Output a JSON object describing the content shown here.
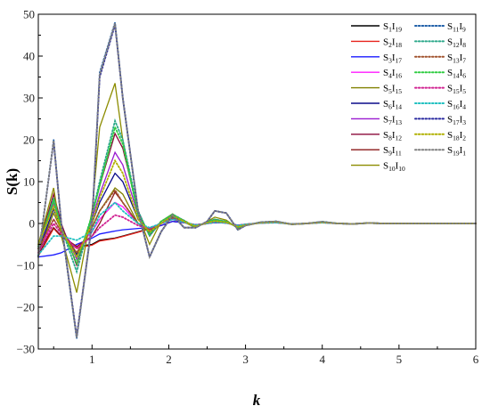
{
  "chart_data": {
    "type": "line",
    "ylabel": "S(k)",
    "xlabel": "k",
    "xlim": [
      0.3,
      6
    ],
    "ylim": [
      -30,
      50
    ],
    "x_ticks": [
      1,
      2,
      3,
      4,
      5,
      6
    ],
    "y_ticks": [
      -30,
      -20,
      -10,
      0,
      10,
      20,
      30,
      40,
      50
    ],
    "grid": false,
    "legend_placement": "top-right",
    "x": [
      0.3,
      0.5,
      0.6,
      0.8,
      1.0,
      1.1,
      1.3,
      1.4,
      1.6,
      1.75,
      1.9,
      2.05,
      2.2,
      2.35,
      2.5,
      2.6,
      2.75,
      2.9,
      3.0,
      3.2,
      3.4,
      3.6,
      3.8,
      4.0,
      4.2,
      4.4,
      4.6,
      4.8,
      5.0,
      5.5,
      6.0
    ],
    "series": [
      {
        "name": "S1I19",
        "label": "S",
        "label_sub1": "1",
        "label_i": "I",
        "label_sub2": "19",
        "color": "#000000",
        "dash": "solid",
        "values": [
          -7.5,
          -1,
          -3,
          -5.5,
          -5,
          -4,
          -3.5,
          -3,
          -2,
          -1.2,
          -0.5,
          0.5,
          0.2,
          -0.3,
          0,
          0.2,
          0.1,
          -0.4,
          -0.2,
          0.1,
          0.2,
          -0.1,
          0,
          0.2,
          0,
          -0.1,
          0.1,
          0,
          0,
          0,
          0
        ]
      },
      {
        "name": "S2I18",
        "label": "S",
        "label_sub1": "2",
        "label_i": "I",
        "label_sub2": "18",
        "color": "#e8221c",
        "dash": "solid",
        "values": [
          -7.8,
          -1.2,
          -3.2,
          -5.8,
          -5.2,
          -4.2,
          -3.6,
          -3.1,
          -2.1,
          -1.3,
          -0.5,
          0.5,
          0.2,
          -0.3,
          0,
          0.2,
          0.1,
          -0.4,
          -0.2,
          0.1,
          0.2,
          -0.1,
          0,
          0.2,
          0,
          -0.1,
          0.1,
          0,
          0,
          0,
          0
        ]
      },
      {
        "name": "S3I17",
        "label": "S",
        "label_sub1": "3",
        "label_i": "I",
        "label_sub2": "17",
        "color": "#1a1aff",
        "dash": "solid",
        "values": [
          -8,
          -7.5,
          -7,
          -5,
          -3.5,
          -2.5,
          -1.8,
          -1.5,
          -1.2,
          -1,
          -0.5,
          0.5,
          0.2,
          -0.3,
          0,
          0.2,
          0.1,
          -0.4,
          -0.2,
          0.1,
          0.2,
          -0.1,
          0,
          0.2,
          0,
          -0.1,
          0.1,
          0,
          0,
          0,
          0
        ]
      },
      {
        "name": "S4I16",
        "label": "S",
        "label_sub1": "4",
        "label_i": "I",
        "label_sub2": "16",
        "color": "#ff1aff",
        "dash": "solid",
        "values": [
          -7,
          1,
          -2,
          -6,
          -2,
          1,
          5,
          4,
          0,
          -1.5,
          0,
          1.2,
          0.3,
          -0.5,
          0,
          0.4,
          0.2,
          -0.6,
          -0.3,
          0.2,
          0.3,
          -0.2,
          0,
          0.3,
          0,
          -0.1,
          0.1,
          0,
          0,
          0,
          0
        ]
      },
      {
        "name": "S5I15",
        "label": "S",
        "label_sub1": "5",
        "label_i": "I",
        "label_sub2": "15",
        "color": "#808000",
        "dash": "solid",
        "values": [
          -7,
          2.5,
          -1.5,
          -7,
          -1,
          3,
          8.5,
          7,
          0,
          -2,
          0,
          1.5,
          0.4,
          -0.6,
          0.1,
          0.5,
          0.2,
          -0.7,
          -0.3,
          0.2,
          0.3,
          -0.2,
          0,
          0.3,
          0,
          -0.1,
          0.1,
          0,
          0,
          0,
          0
        ]
      },
      {
        "name": "S6I14",
        "label": "S",
        "label_sub1": "6",
        "label_i": "I",
        "label_sub2": "14",
        "color": "#0a0a8a",
        "dash": "solid",
        "values": [
          -6.5,
          3.5,
          -1,
          -7.5,
          0,
          5,
          12,
          10,
          1,
          -2,
          0,
          1.7,
          0.5,
          -0.7,
          0.2,
          0.6,
          0.3,
          -0.8,
          -0.4,
          0.2,
          0.4,
          -0.2,
          0,
          0.3,
          0,
          -0.1,
          0.1,
          0,
          0,
          0,
          0
        ]
      },
      {
        "name": "S7I13",
        "label": "S",
        "label_sub1": "7",
        "label_i": "I",
        "label_sub2": "13",
        "color": "#9a1ad0",
        "dash": "solid",
        "values": [
          -6,
          5,
          -0.5,
          -8.5,
          1,
          7,
          17,
          14,
          2,
          -2.5,
          0,
          2,
          0.6,
          -0.8,
          0.3,
          0.8,
          0.4,
          -0.9,
          -0.4,
          0.3,
          0.4,
          -0.2,
          0,
          0.4,
          0,
          -0.1,
          0.1,
          0,
          0,
          0,
          0
        ]
      },
      {
        "name": "S8I12",
        "label": "S",
        "label_sub1": "8",
        "label_i": "I",
        "label_sub2": "12",
        "color": "#8b0a3a",
        "dash": "solid",
        "values": [
          -5.5,
          7,
          0,
          -10,
          2,
          9,
          21.5,
          18,
          3,
          -3,
          0.5,
          2.2,
          0.7,
          -0.9,
          0.4,
          1,
          0.5,
          -1,
          -0.5,
          0.3,
          0.5,
          -0.2,
          0,
          0.4,
          0,
          -0.1,
          0.1,
          0,
          0,
          0,
          0
        ]
      },
      {
        "name": "S9I11",
        "label": "S",
        "label_sub1": "9",
        "label_i": "I",
        "label_sub2": "11",
        "color": "#8b1a1a",
        "dash": "solid",
        "values": [
          -6.5,
          -1,
          -3,
          -5.5,
          -3,
          0,
          7.5,
          5,
          0,
          -1.5,
          0,
          1.2,
          0.3,
          -0.5,
          0,
          0.3,
          0.1,
          -0.5,
          -0.2,
          0.1,
          0.2,
          -0.1,
          0,
          0.2,
          0,
          -0.1,
          0.1,
          0,
          0,
          0,
          0
        ]
      },
      {
        "name": "S10I10",
        "label": "S",
        "label_sub1": "10",
        "label_i": "I",
        "label_sub2": "10",
        "color": "#8c8c00",
        "dash": "solid",
        "values": [
          -5,
          8.5,
          -3,
          -16.5,
          3,
          23,
          33.5,
          20,
          2,
          -5,
          0.5,
          2.3,
          0.3,
          -1,
          0.5,
          1.5,
          0.8,
          -1.2,
          -0.5,
          0.3,
          0.5,
          -0.2,
          0,
          0.4,
          0,
          -0.1,
          0.1,
          0,
          0,
          0,
          0
        ]
      },
      {
        "name": "S11I9",
        "label": "S",
        "label_sub1": "11",
        "label_i": "I",
        "label_sub2": "9",
        "color": "#1f5fa8",
        "dash": "dot",
        "values": [
          -8,
          20,
          0,
          -27.5,
          0,
          36,
          48,
          30,
          3,
          -8,
          -2,
          2,
          -1,
          -1,
          0.5,
          3,
          2.5,
          -1.5,
          -0.5,
          0.3,
          0.5,
          -0.2,
          0,
          0.4,
          0,
          -0.1,
          0.1,
          0,
          0,
          0,
          0
        ]
      },
      {
        "name": "S12I8",
        "label": "S",
        "label_sub1": "12",
        "label_i": "I",
        "label_sub2": "8",
        "color": "#2ca88a",
        "dash": "dot",
        "values": [
          -6,
          6,
          -1,
          -11.5,
          2,
          10,
          24.5,
          20,
          3,
          -3,
          0.5,
          2.2,
          0.7,
          -0.9,
          0.4,
          1,
          0.5,
          -1,
          -0.5,
          0.3,
          0.5,
          -0.2,
          0,
          0.4,
          0,
          -0.1,
          0.1,
          0,
          0,
          0,
          0
        ]
      },
      {
        "name": "S13I7",
        "label": "S",
        "label_sub1": "13",
        "label_i": "I",
        "label_sub2": "7",
        "color": "#a0522d",
        "dash": "dot",
        "values": [
          -6,
          1,
          -2,
          -7,
          -1,
          3,
          8,
          5,
          0,
          -1.5,
          0,
          1.2,
          0.3,
          -0.5,
          0,
          0.4,
          0.2,
          -0.6,
          -0.3,
          0.2,
          0.3,
          -0.2,
          0,
          0.3,
          0,
          -0.1,
          0.1,
          0,
          0,
          0,
          0
        ]
      },
      {
        "name": "S14I6",
        "label": "S",
        "label_sub1": "14",
        "label_i": "I",
        "label_sub2": "6",
        "color": "#2ecc40",
        "dash": "dot",
        "values": [
          -5.5,
          5.5,
          -1,
          -9.5,
          2,
          9,
          23,
          19,
          2,
          -2.5,
          0.5,
          2.1,
          0.6,
          -0.8,
          0.3,
          0.8,
          0.4,
          -0.9,
          -0.4,
          0.3,
          0.4,
          -0.2,
          0,
          0.4,
          0,
          -0.1,
          0.1,
          0,
          0,
          0,
          0
        ]
      },
      {
        "name": "S15I5",
        "label": "S",
        "label_sub1": "15",
        "label_i": "I",
        "label_sub2": "5",
        "color": "#d02090",
        "dash": "dot",
        "values": [
          -7,
          0,
          -2.5,
          -6,
          -3,
          -1,
          2,
          1.5,
          -0.5,
          -1.2,
          0,
          1,
          0.3,
          -0.4,
          0,
          0.3,
          0.1,
          -0.5,
          -0.2,
          0.1,
          0.2,
          -0.1,
          0,
          0.2,
          0,
          -0.1,
          0.1,
          0,
          0,
          0,
          0
        ]
      },
      {
        "name": "S16I4",
        "label": "S",
        "label_sub1": "16",
        "label_i": "I",
        "label_sub2": "4",
        "color": "#20c0c0",
        "dash": "dot",
        "values": [
          -7.5,
          -3,
          -3,
          -4,
          -2,
          2,
          5,
          3,
          0,
          -1,
          0,
          1,
          0.3,
          -0.4,
          0,
          0.3,
          0.1,
          -0.5,
          -0.2,
          0.1,
          0.2,
          -0.1,
          0,
          0.2,
          0,
          -0.1,
          0.1,
          0,
          0,
          0,
          0
        ]
      },
      {
        "name": "S17I3",
        "label": "S",
        "label_sub1": "17",
        "label_i": "I",
        "label_sub2": "3",
        "color": "#2a2aa0",
        "dash": "dot",
        "values": [
          -8,
          19.5,
          0,
          -27,
          0,
          35,
          47.5,
          30,
          3,
          -8,
          -2,
          2,
          -1,
          -1,
          0.5,
          3,
          2.5,
          -1.5,
          -0.5,
          0.3,
          0.5,
          -0.2,
          0,
          0.4,
          0,
          -0.1,
          0.1,
          0,
          0,
          0,
          0
        ]
      },
      {
        "name": "S18I2",
        "label": "S",
        "label_sub1": "18",
        "label_i": "I",
        "label_sub2": "2",
        "color": "#b0b000",
        "dash": "dot",
        "values": [
          -5,
          4,
          -1.5,
          -8,
          0,
          6,
          15,
          12,
          1,
          -2,
          0,
          1.8,
          0.5,
          -0.7,
          0.2,
          0.6,
          0.3,
          -0.8,
          -0.4,
          0.2,
          0.4,
          -0.2,
          0,
          0.3,
          0,
          -0.1,
          0.1,
          0,
          0,
          0,
          0
        ]
      },
      {
        "name": "S19I1",
        "label": "S",
        "label_sub1": "19",
        "label_i": "I",
        "label_sub2": "1",
        "color": "#7f7f7f",
        "dash": "dot",
        "values": [
          -8,
          19.8,
          0,
          -27.3,
          0,
          35.5,
          47.8,
          30,
          3,
          -8,
          -2,
          2,
          -1,
          -1,
          0.5,
          3,
          2.5,
          -1.5,
          -0.5,
          0.3,
          0.5,
          -0.2,
          0,
          0.4,
          0,
          -0.1,
          0.1,
          0,
          0,
          0,
          0
        ]
      }
    ]
  }
}
